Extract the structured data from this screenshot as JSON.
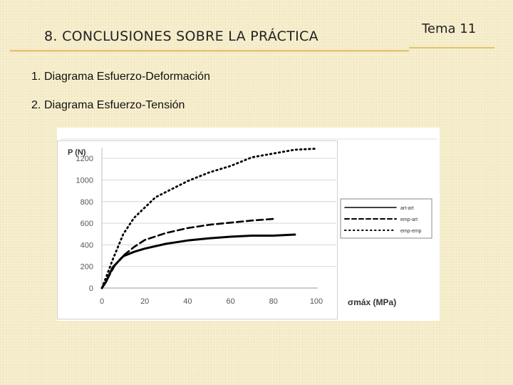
{
  "header": {
    "title": "8. CONCLUSIONES SOBRE LA PRÁCTICA",
    "tag": "Tema 11"
  },
  "bullets": [
    {
      "num": "1.",
      "text": "Diagrama  Esfuerzo-Deformación"
    },
    {
      "num": "2.",
      "text": "Diagrama  Esfuerzo-Tensión"
    }
  ],
  "chart_data": {
    "type": "line",
    "ylabel": "P (N)",
    "xlabel": "σmáx (MPa)",
    "xlim": [
      0,
      100
    ],
    "ylim": [
      0,
      1300
    ],
    "xticks": [
      "0",
      "20",
      "40",
      "60",
      "80",
      "100"
    ],
    "yticks": [
      "0",
      "200",
      "400",
      "600",
      "800",
      "1000",
      "1200"
    ],
    "grid": "horizontal",
    "legend_position": "right",
    "series": [
      {
        "name": "art-art",
        "style": "solid",
        "x": [
          0,
          2,
          5,
          10,
          15,
          20,
          30,
          40,
          50,
          60,
          70,
          80,
          90
        ],
        "y": [
          0,
          60,
          190,
          295,
          335,
          365,
          410,
          440,
          460,
          475,
          485,
          485,
          495
        ]
      },
      {
        "name": "emp-art",
        "style": "dashed",
        "x": [
          0,
          3,
          6,
          10,
          15,
          20,
          30,
          40,
          50,
          60,
          70,
          80
        ],
        "y": [
          0,
          100,
          210,
          300,
          380,
          445,
          510,
          555,
          585,
          605,
          625,
          640
        ]
      },
      {
        "name": "emp-emp",
        "style": "dotted",
        "x": [
          0,
          2,
          5,
          10,
          15,
          20,
          25,
          30,
          40,
          50,
          60,
          70,
          80,
          90,
          100
        ],
        "y": [
          0,
          100,
          260,
          500,
          650,
          745,
          840,
          890,
          990,
          1070,
          1130,
          1210,
          1245,
          1280,
          1290
        ]
      }
    ],
    "colors": {
      "line": "#000000",
      "grid": "#d6d6d6",
      "tick": "#555555",
      "border": "#d0d0d0"
    }
  }
}
